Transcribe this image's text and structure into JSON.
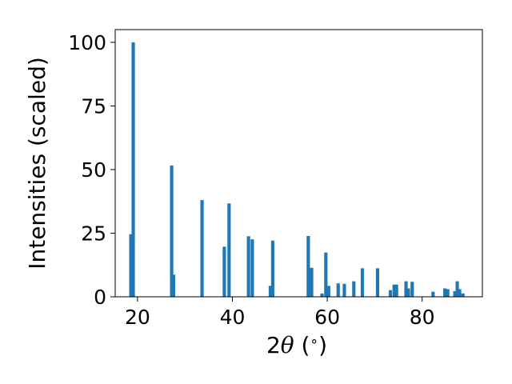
{
  "chart_data": {
    "type": "bar",
    "title": "",
    "xlabel_parts": [
      "2",
      "θ",
      " (",
      "∘",
      ")"
    ],
    "ylabel": "Intensities (scaled)",
    "xlim": [
      15.3,
      92.7
    ],
    "ylim": [
      0,
      105
    ],
    "xticks": [
      20,
      40,
      60,
      80
    ],
    "yticks": [
      0,
      25,
      50,
      75,
      100
    ],
    "grid": false,
    "bar_width_deg": 0.7,
    "bar_color": "#1f77b4",
    "series": [
      {
        "x": [
          18.6,
          19.1,
          27.2,
          27.6,
          33.6,
          38.3,
          39.3,
          43.4,
          44.2,
          48.0,
          48.5,
          56.0,
          56.7,
          58.9,
          59.7,
          60.3,
          62.3,
          63.6,
          65.6,
          67.4,
          70.6,
          73.3,
          74.1,
          74.6,
          76.6,
          77.1,
          77.9,
          82.3,
          84.8,
          85.4,
          86.9,
          87.4,
          87.9,
          88.6
        ],
        "y": [
          24.6,
          100,
          51.6,
          8.7,
          38.0,
          19.7,
          36.7,
          23.8,
          22.6,
          4.3,
          22.1,
          23.9,
          11.4,
          1.3,
          17.4,
          4.3,
          5.3,
          5.1,
          6.1,
          11.2,
          11.2,
          2.6,
          4.8,
          4.8,
          6.1,
          3.3,
          5.9,
          2.0,
          3.3,
          3.0,
          2.2,
          6.1,
          3.0,
          1.3
        ]
      }
    ]
  }
}
